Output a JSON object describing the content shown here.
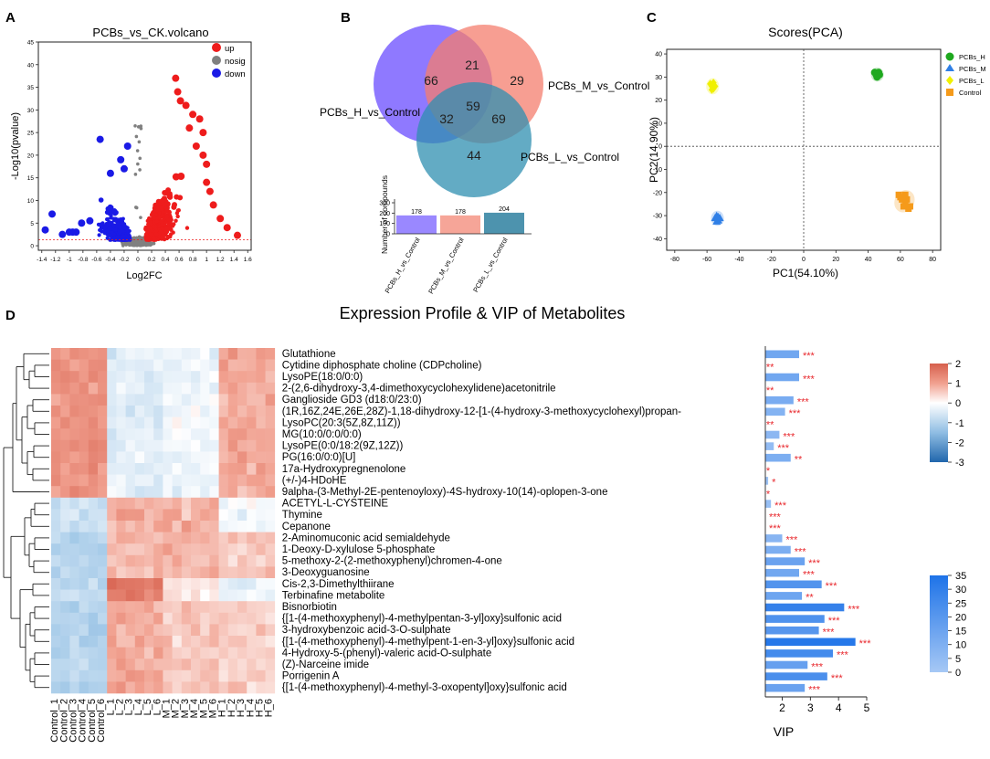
{
  "panel_labels": [
    "A",
    "B",
    "C",
    "D"
  ],
  "chart_data": [
    {
      "id": "A",
      "type": "scatter",
      "title": "PCBs_vs_CK.volcano",
      "xlabel": "Log2FC",
      "ylabel": "-Log10(pvalue)",
      "xlim": [
        -1.45,
        1.65
      ],
      "ylim": [
        -1,
        45
      ],
      "xticks": [
        -1.4,
        -1.2,
        -1,
        -0.8,
        -0.6,
        -0.4,
        -0.2,
        0,
        0.2,
        0.4,
        0.6,
        0.8,
        1,
        1.2,
        1.4,
        1.6
      ],
      "yticks": [
        0,
        5,
        10,
        15,
        20,
        25,
        30,
        35,
        40,
        45
      ],
      "threshold_y": 1.3,
      "legend": [
        {
          "label": "up",
          "color": "#ee1c1c"
        },
        {
          "label": "nosig",
          "color": "#808080"
        },
        {
          "label": "down",
          "color": "#1a1ae6"
        }
      ]
    },
    {
      "id": "B",
      "type": "venn",
      "sets": [
        {
          "name": "PCBs_H_vs_Control",
          "color": "#7b61ff"
        },
        {
          "name": "PCBs_M_vs_Control",
          "color": "#f47d6e"
        },
        {
          "name": "PCBs_L_vs_Control",
          "color": "#2f8fb0"
        }
      ],
      "regions": {
        "H_only": 66,
        "M_only": 29,
        "L_only": 44,
        "HM": 21,
        "HL": 32,
        "ML": 69,
        "HML": 59
      },
      "bar": {
        "ylabel": "Number of compounds",
        "ylim": [
          0,
          300
        ],
        "yticks": [
          0,
          100,
          200,
          300
        ],
        "categories": [
          "PCBs_H_vs_Control",
          "PCBs_M_vs_Control",
          "PCBs_L_vs_Control"
        ],
        "values": [
          178,
          178,
          204
        ],
        "colors": [
          "#9a88ff",
          "#f6a598",
          "#4d93ae"
        ]
      }
    },
    {
      "id": "C",
      "type": "scatter",
      "title": "Scores(PCA)",
      "xlabel": "PC1(54.10%)",
      "ylabel": "PC2(14.90%)",
      "xlim": [
        -85,
        85
      ],
      "ylim": [
        -45,
        42
      ],
      "xticks": [
        -80,
        -60,
        -40,
        -20,
        0,
        20,
        40,
        60,
        80
      ],
      "yticks": [
        -40,
        -30,
        -20,
        -10,
        0,
        10,
        20,
        30,
        40
      ],
      "series": [
        {
          "name": "PCBs_H",
          "color": "#1ea81e",
          "marker": "circle",
          "points": [
            [
              44,
              32
            ],
            [
              45,
              31
            ],
            [
              46,
              30.5
            ],
            [
              47,
              31
            ],
            [
              45.5,
              30
            ],
            [
              46.5,
              32
            ]
          ]
        },
        {
          "name": "PCBs_M",
          "color": "#2f7fe6",
          "marker": "triangle",
          "points": [
            [
              -55,
              -31
            ],
            [
              -53,
              -32
            ],
            [
              -54,
              -30
            ],
            [
              -52,
              -31
            ],
            [
              -54,
              -32.5
            ],
            [
              -53,
              -30.5
            ]
          ]
        },
        {
          "name": "PCBs_L",
          "color": "#f0f000",
          "marker": "diamond",
          "points": [
            [
              -58,
              27
            ],
            [
              -57,
              26
            ],
            [
              -56,
              25
            ],
            [
              -55,
              26
            ],
            [
              -57,
              24.5
            ],
            [
              -56,
              27.5
            ]
          ]
        },
        {
          "name": "Control",
          "color": "#f59a1a",
          "marker": "square",
          "points": [
            [
              59,
              -21
            ],
            [
              61,
              -23
            ],
            [
              63,
              -25
            ],
            [
              65,
              -27
            ],
            [
              62,
              -26
            ],
            [
              64,
              -23
            ],
            [
              66,
              -26
            ],
            [
              60,
              -22
            ],
            [
              63,
              -21
            ]
          ]
        }
      ]
    },
    {
      "id": "D",
      "type": "heatmap",
      "title": "Expression Profile & VIP of Metabolites",
      "columns": [
        "Control_1",
        "Control_2",
        "Control_3",
        "Control_4",
        "Control_5",
        "Control_6",
        "L_1",
        "L_2",
        "L_3",
        "L_4",
        "L_5",
        "L_6",
        "M_1",
        "M_2",
        "M_3",
        "M_4",
        "M_5",
        "M_6",
        "H_1",
        "H_2",
        "H_3",
        "H_4",
        "H_5",
        "H_6"
      ],
      "rows": [
        {
          "name": "Glutathione",
          "vip": 2.6,
          "sig": "***"
        },
        {
          "name": "Cytidine diphosphate choline (CDPcholine)",
          "vip": 1.3,
          "sig": "**"
        },
        {
          "name": "LysoPE(18:0/0:0)",
          "vip": 2.6,
          "sig": "***"
        },
        {
          "name": "2-(2,6-dihydroxy-3,4-dimethoxycyclohexylidene)acetonitrile",
          "vip": 1.3,
          "sig": "**"
        },
        {
          "name": "Ganglioside GD3 (d18:0/23:0)",
          "vip": 2.4,
          "sig": "***"
        },
        {
          "name": "(1R,16Z,24E,26E,28Z)-1,18-dihydroxy-12-[1-(4-hydroxy-3-methoxycyclohexyl)propan-",
          "vip": 2.1,
          "sig": "***"
        },
        {
          "name": "LysoPC(20:3(5Z,8Z,11Z))",
          "vip": 1.3,
          "sig": "**"
        },
        {
          "name": "MG(10:0/0:0/0:0)",
          "vip": 1.9,
          "sig": "***"
        },
        {
          "name": "LysoPE(0:0/18:2(9Z,12Z))",
          "vip": 1.7,
          "sig": "***"
        },
        {
          "name": "PG(16:0/0:0)[U]",
          "vip": 2.3,
          "sig": "**"
        },
        {
          "name": "17a-Hydroxypregnenolone",
          "vip": 1.3,
          "sig": "*"
        },
        {
          "name": "(+/-)4-HDoHE",
          "vip": 1.5,
          "sig": "*"
        },
        {
          "name": "9alpha-(3-Methyl-2E-pentenoyloxy)-4S-hydroxy-10(14)-oplopen-3-one",
          "vip": 1.3,
          "sig": "*"
        },
        {
          "name": "ACETYL-L-CYSTEINE",
          "vip": 1.6,
          "sig": "***"
        },
        {
          "name": "Thymine",
          "vip": 1.4,
          "sig": "***"
        },
        {
          "name": "Cepanone",
          "vip": 1.4,
          "sig": "***"
        },
        {
          "name": "2-Aminomuconic acid semialdehyde",
          "vip": 2.0,
          "sig": "***"
        },
        {
          "name": "1-Deoxy-D-xylulose 5-phosphate",
          "vip": 2.3,
          "sig": "***"
        },
        {
          "name": "5-methoxy-2-(2-methoxyphenyl)chromen-4-one",
          "vip": 2.8,
          "sig": "***"
        },
        {
          "name": "3-Deoxyguanosine",
          "vip": 2.6,
          "sig": "***"
        },
        {
          "name": "Cis-2,3-Dimethylthiirane",
          "vip": 3.4,
          "sig": "***"
        },
        {
          "name": "Terbinafine metabolite",
          "vip": 2.7,
          "sig": "**"
        },
        {
          "name": "Bisnorbiotin",
          "vip": 4.2,
          "sig": "***"
        },
        {
          "name": "{[1-(4-methoxyphenyl)-4-methylpentan-3-yl]oxy}sulfonic acid",
          "vip": 3.5,
          "sig": "***"
        },
        {
          "name": "3-hydroxybenzoic acid-3-O-sulphate",
          "vip": 3.3,
          "sig": "***"
        },
        {
          "name": "{[1-(4-methoxyphenyl)-4-methylpent-1-en-3-yl]oxy}sulfonic acid",
          "vip": 4.6,
          "sig": "***"
        },
        {
          "name": "4-Hydroxy-5-(phenyl)-valeric acid-O-sulphate",
          "vip": 3.8,
          "sig": "***"
        },
        {
          "name": "(Z)-Narceine imide",
          "vip": 2.9,
          "sig": "***"
        },
        {
          "name": "Porrigenin A",
          "vip": 3.6,
          "sig": "***"
        },
        {
          "name": "{[1-(4-methoxyphenyl)-4-methyl-3-oxopentyl]oxy}sulfonic acid",
          "vip": 2.8,
          "sig": "***"
        }
      ],
      "vip_axis": {
        "label": "VIP",
        "xlim": [
          1.4,
          5
        ],
        "ticks": [
          2,
          3,
          4,
          5
        ]
      },
      "colorbar": {
        "ticks": [
          2,
          1,
          0,
          -1,
          -2,
          -3
        ],
        "range": [
          -3,
          2
        ],
        "low": "#2166ac",
        "mid": "#ffffff",
        "high": "#d6604d"
      },
      "vip_colorbar": {
        "ticks": [
          35,
          30,
          25,
          20,
          15,
          10,
          5,
          0
        ],
        "range": [
          0,
          35
        ],
        "low": "#a6c8f5",
        "high": "#1e73e8"
      }
    }
  ]
}
